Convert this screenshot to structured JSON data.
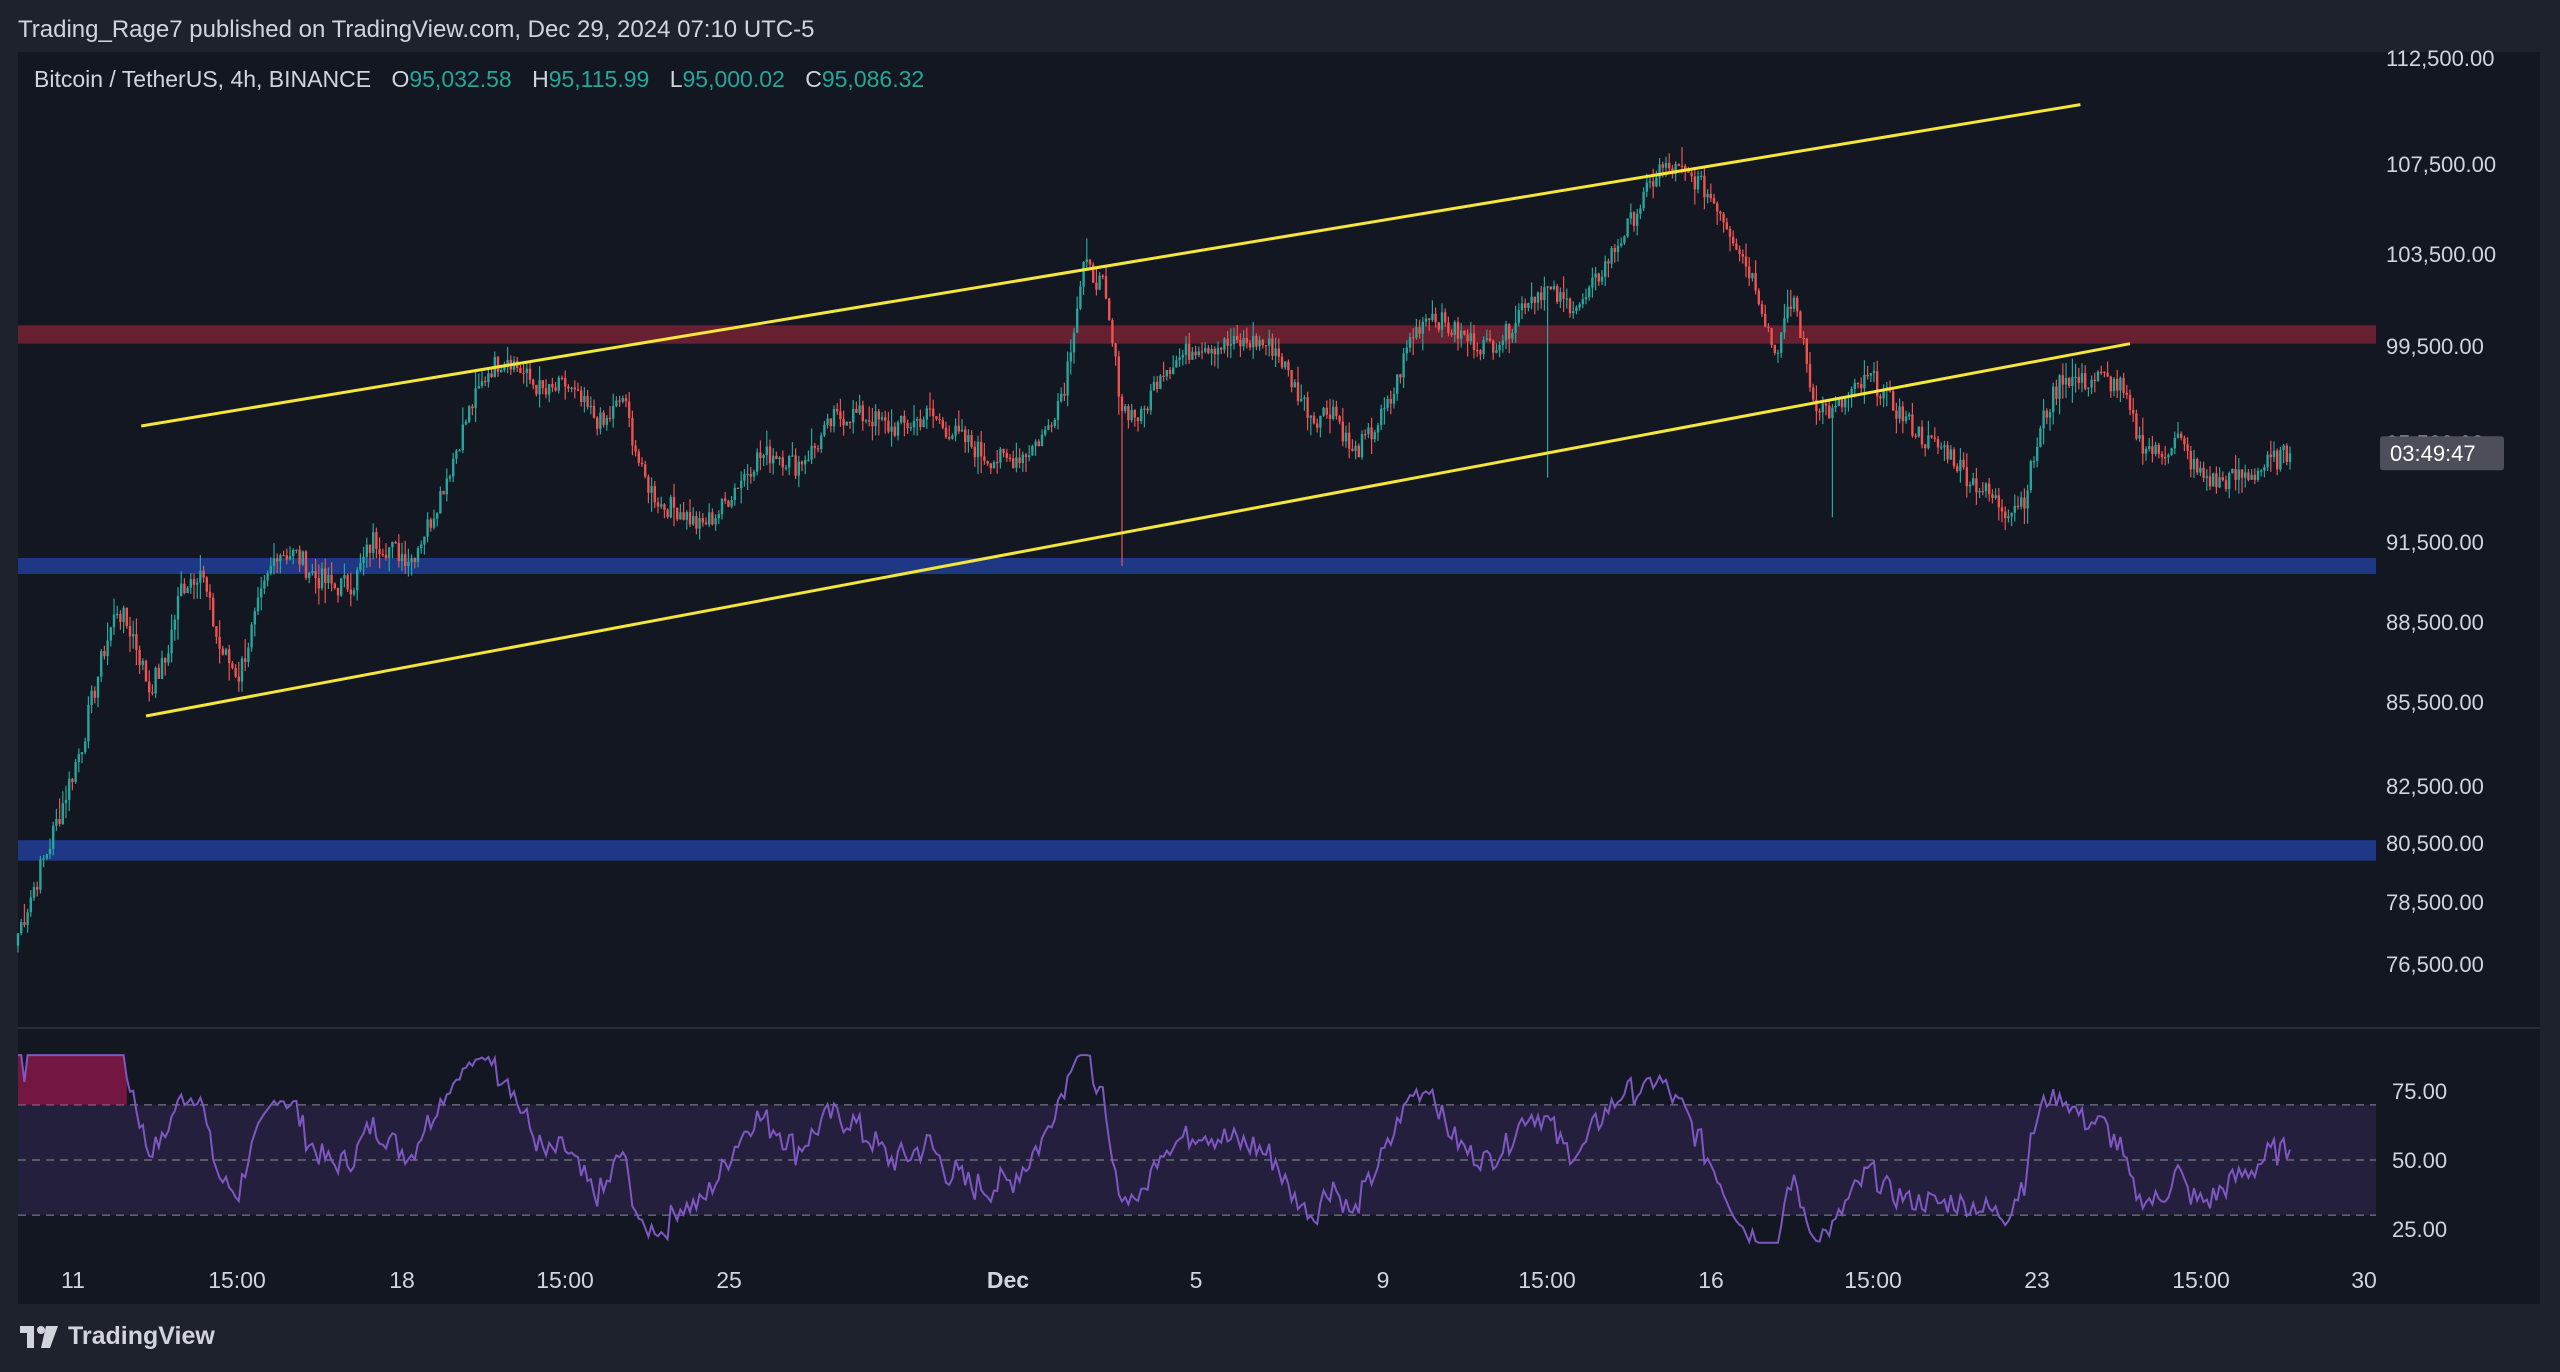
{
  "header": {
    "published": "Trading_Rage7 published on TradingView.com, Dec 29, 2024 07:10 UTC-5"
  },
  "symbol": {
    "name": "Bitcoin / TetherUS, 4h, BINANCE",
    "open_label": "O",
    "open": "95,032.58",
    "high_label": "H",
    "high": "95,115.99",
    "low_label": "L",
    "low": "95,000.02",
    "close_label": "C",
    "close": "95,086.32"
  },
  "countdown": "03:49:47",
  "footer": {
    "brand": "TradingView"
  },
  "colors": {
    "background": "#1e222d",
    "chart_bg": "#131722",
    "up": "#26a69a",
    "down": "#ef5350",
    "channel": "#f5e63c",
    "resistance": "#6b2130",
    "support": "#1f3a8c",
    "rsi_line": "#7e57c2"
  },
  "chart_data": [
    {
      "type": "candlestick",
      "title": "Bitcoin / TetherUS, 4h, BINANCE",
      "x_ticks": [
        "11",
        "15:00",
        "18",
        "15:00",
        "25",
        "Dec",
        "5",
        "9",
        "15:00",
        "16",
        "15:00",
        "23",
        "15:00",
        "30"
      ],
      "y_ticks": [
        112500,
        107500,
        103500,
        99500,
        95500,
        91500,
        88500,
        85500,
        82500,
        80500,
        78500,
        76500
      ],
      "y_tick_labels": [
        "112,500.00",
        "107,500.00",
        "103,500.00",
        "99,500.00",
        "95,500.00",
        "91,500.00",
        "88,500.00",
        "85,500.00",
        "82,500.00",
        "80,500.00",
        "78,500.00",
        "76,500.00"
      ],
      "last_price": 95086.32,
      "path_anchors": [
        [
          0,
          77500
        ],
        [
          10,
          80500
        ],
        [
          20,
          84000
        ],
        [
          27,
          87500
        ],
        [
          31,
          89000
        ],
        [
          36,
          88000
        ],
        [
          41,
          86000
        ],
        [
          46,
          87000
        ],
        [
          51,
          89800
        ],
        [
          57,
          90500
        ],
        [
          63,
          87500
        ],
        [
          69,
          86500
        ],
        [
          75,
          89000
        ],
        [
          81,
          91200
        ],
        [
          87,
          91000
        ],
        [
          93,
          90200
        ],
        [
          99,
          89800
        ],
        [
          105,
          90000
        ],
        [
          111,
          91600
        ],
        [
          117,
          91200
        ],
        [
          123,
          90900
        ],
        [
          129,
          92400
        ],
        [
          135,
          94500
        ],
        [
          141,
          96800
        ],
        [
          147,
          98500
        ],
        [
          153,
          99100
        ],
        [
          159,
          98200
        ],
        [
          165,
          97500
        ],
        [
          171,
          97900
        ],
        [
          177,
          97000
        ],
        [
          183,
          96200
        ],
        [
          189,
          97400
        ],
        [
          195,
          94200
        ],
        [
          201,
          93000
        ],
        [
          207,
          92800
        ],
        [
          213,
          92100
        ],
        [
          219,
          92700
        ],
        [
          225,
          93900
        ],
        [
          231,
          94900
        ],
        [
          237,
          95100
        ],
        [
          243,
          94600
        ],
        [
          249,
          95300
        ],
        [
          255,
          96500
        ],
        [
          261,
          96700
        ],
        [
          267,
          96500
        ],
        [
          273,
          96100
        ],
        [
          279,
          96300
        ],
        [
          285,
          96700
        ],
        [
          291,
          96000
        ],
        [
          297,
          95500
        ],
        [
          303,
          94900
        ],
        [
          309,
          94800
        ],
        [
          315,
          95100
        ],
        [
          321,
          95900
        ],
        [
          327,
          97900
        ],
        [
          333,
          103000
        ],
        [
          339,
          102100
        ],
        [
          345,
          97000
        ],
        [
          351,
          96500
        ],
        [
          357,
          98500
        ],
        [
          363,
          99000
        ],
        [
          369,
          99600
        ],
        [
          375,
          99500
        ],
        [
          381,
          99600
        ],
        [
          387,
          99700
        ],
        [
          393,
          99400
        ],
        [
          399,
          97800
        ],
        [
          405,
          96500
        ],
        [
          411,
          97000
        ],
        [
          417,
          95000
        ],
        [
          423,
          95900
        ],
        [
          429,
          97200
        ],
        [
          435,
          99800
        ],
        [
          441,
          101000
        ],
        [
          447,
          100300
        ],
        [
          453,
          99800
        ],
        [
          459,
          99500
        ],
        [
          465,
          100000
        ],
        [
          471,
          101500
        ],
        [
          477,
          102000
        ],
        [
          483,
          101400
        ],
        [
          489,
          101300
        ],
        [
          495,
          102800
        ],
        [
          501,
          104200
        ],
        [
          507,
          105700
        ],
        [
          513,
          107300
        ],
        [
          519,
          107200
        ],
        [
          525,
          106700
        ],
        [
          531,
          105700
        ],
        [
          537,
          104000
        ],
        [
          543,
          102200
        ],
        [
          549,
          99200
        ],
        [
          555,
          101600
        ],
        [
          561,
          97300
        ],
        [
          567,
          96700
        ],
        [
          573,
          97500
        ],
        [
          579,
          98200
        ],
        [
          585,
          97200
        ],
        [
          591,
          96300
        ],
        [
          597,
          95500
        ],
        [
          603,
          95200
        ],
        [
          609,
          94200
        ],
        [
          615,
          93500
        ],
        [
          621,
          92800
        ],
        [
          627,
          93300
        ],
        [
          633,
          96500
        ],
        [
          639,
          98300
        ],
        [
          645,
          98000
        ],
        [
          651,
          98200
        ],
        [
          657,
          97800
        ],
        [
          663,
          95600
        ],
        [
          669,
          95000
        ],
        [
          675,
          95700
        ],
        [
          681,
          94300
        ],
        [
          687,
          93900
        ],
        [
          693,
          94100
        ],
        [
          699,
          94300
        ],
        [
          705,
          94800
        ],
        [
          710,
          95086.32
        ]
      ],
      "overlays": {
        "channel_upper": [
          [
            38.5,
            96200
          ],
          [
            644.5,
            110300
          ]
        ],
        "channel_lower": [
          [
            40,
            85000
          ],
          [
            660,
            99600
          ]
        ],
        "resistance_zone": [
          99600,
          100400
        ],
        "support_zone_1": [
          90300,
          90900
        ],
        "support_zone_2": [
          79900,
          80600
        ]
      }
    },
    {
      "type": "line",
      "title": "RSI",
      "y_ticks": [
        75,
        50,
        25
      ],
      "y_tick_labels": [
        "75.00",
        "50.00",
        "25.00"
      ],
      "bands": [
        70,
        50,
        30
      ],
      "overbought_highlight_above": 70
    }
  ]
}
